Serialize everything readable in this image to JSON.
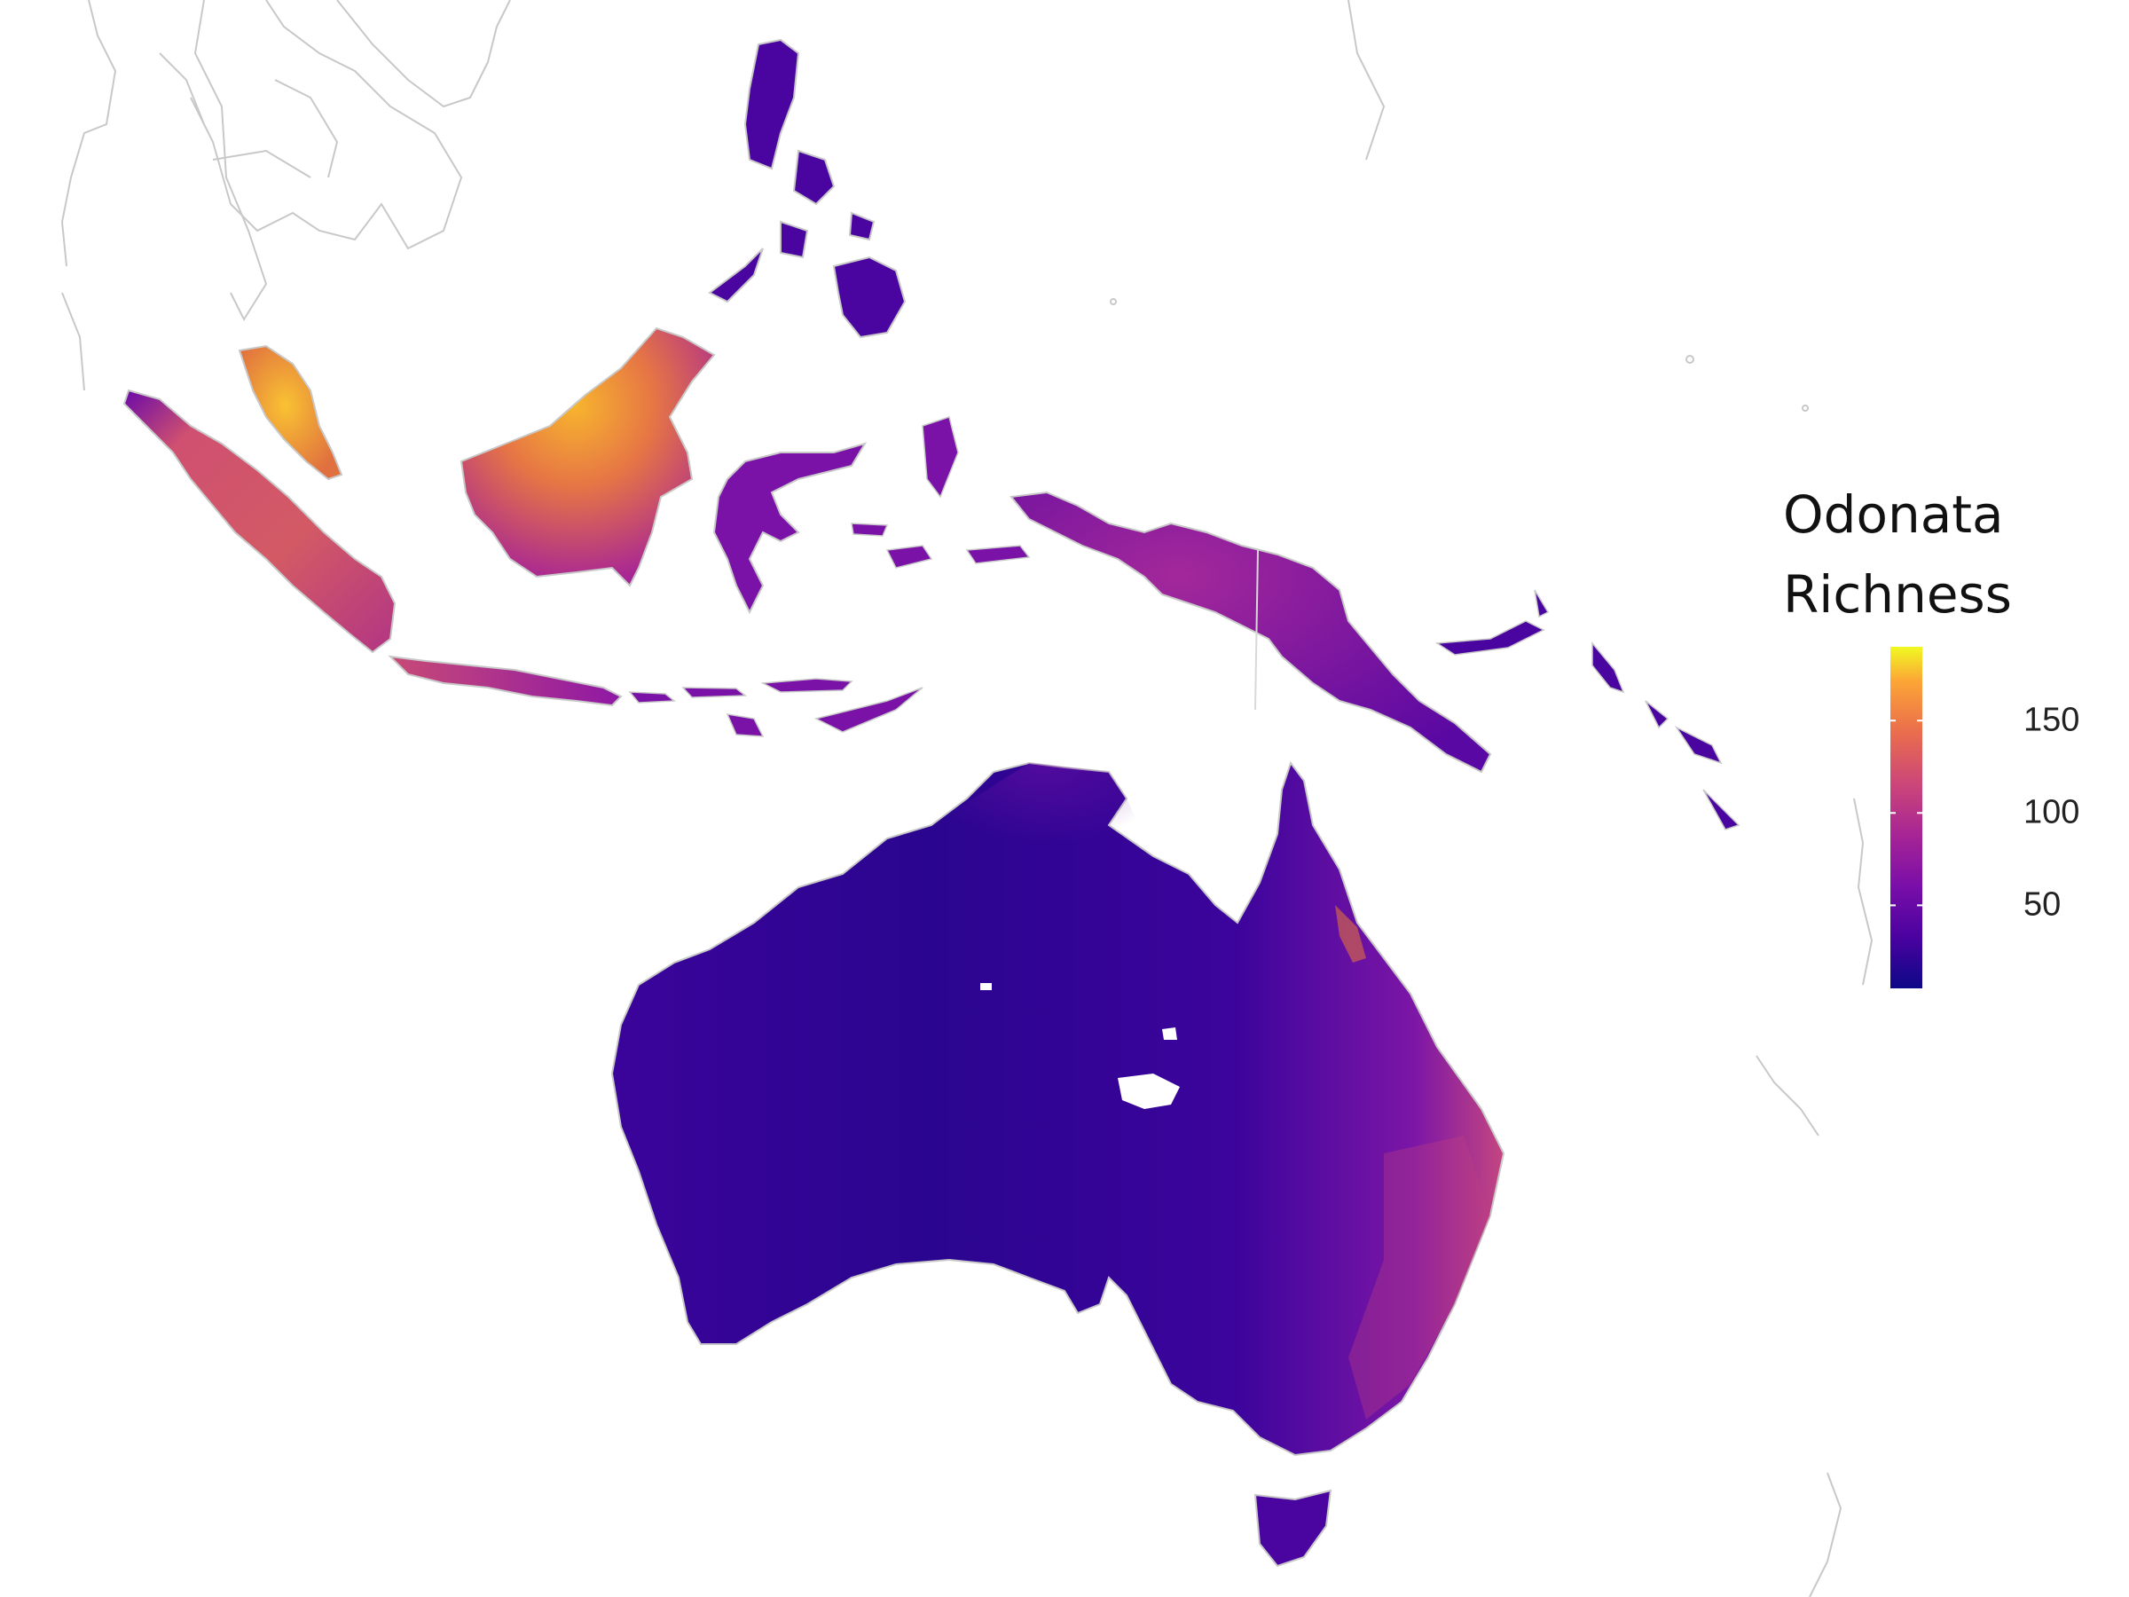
{
  "legend": {
    "title_line1": "Odonata",
    "title_line2": "Richness",
    "scale": {
      "min": 5,
      "max": 190,
      "ticks": [
        {
          "value": 150,
          "label": "150"
        },
        {
          "value": 100,
          "label": "100"
        },
        {
          "value": 50,
          "label": "50"
        }
      ]
    },
    "palette": [
      "#0d0887",
      "#5302a3",
      "#8b0aa5",
      "#b83289",
      "#db5c68",
      "#f48849",
      "#febd2a",
      "#f0f921"
    ]
  },
  "colors": {
    "low": "#2c0594",
    "mid_low": "#4a05a0",
    "mid": "#7a12a8",
    "mid_high": "#c03a83",
    "high": "#f0803e",
    "peak": "#f7b52e",
    "land_outline": "#c8c8c8",
    "background": "#ffffff"
  }
}
